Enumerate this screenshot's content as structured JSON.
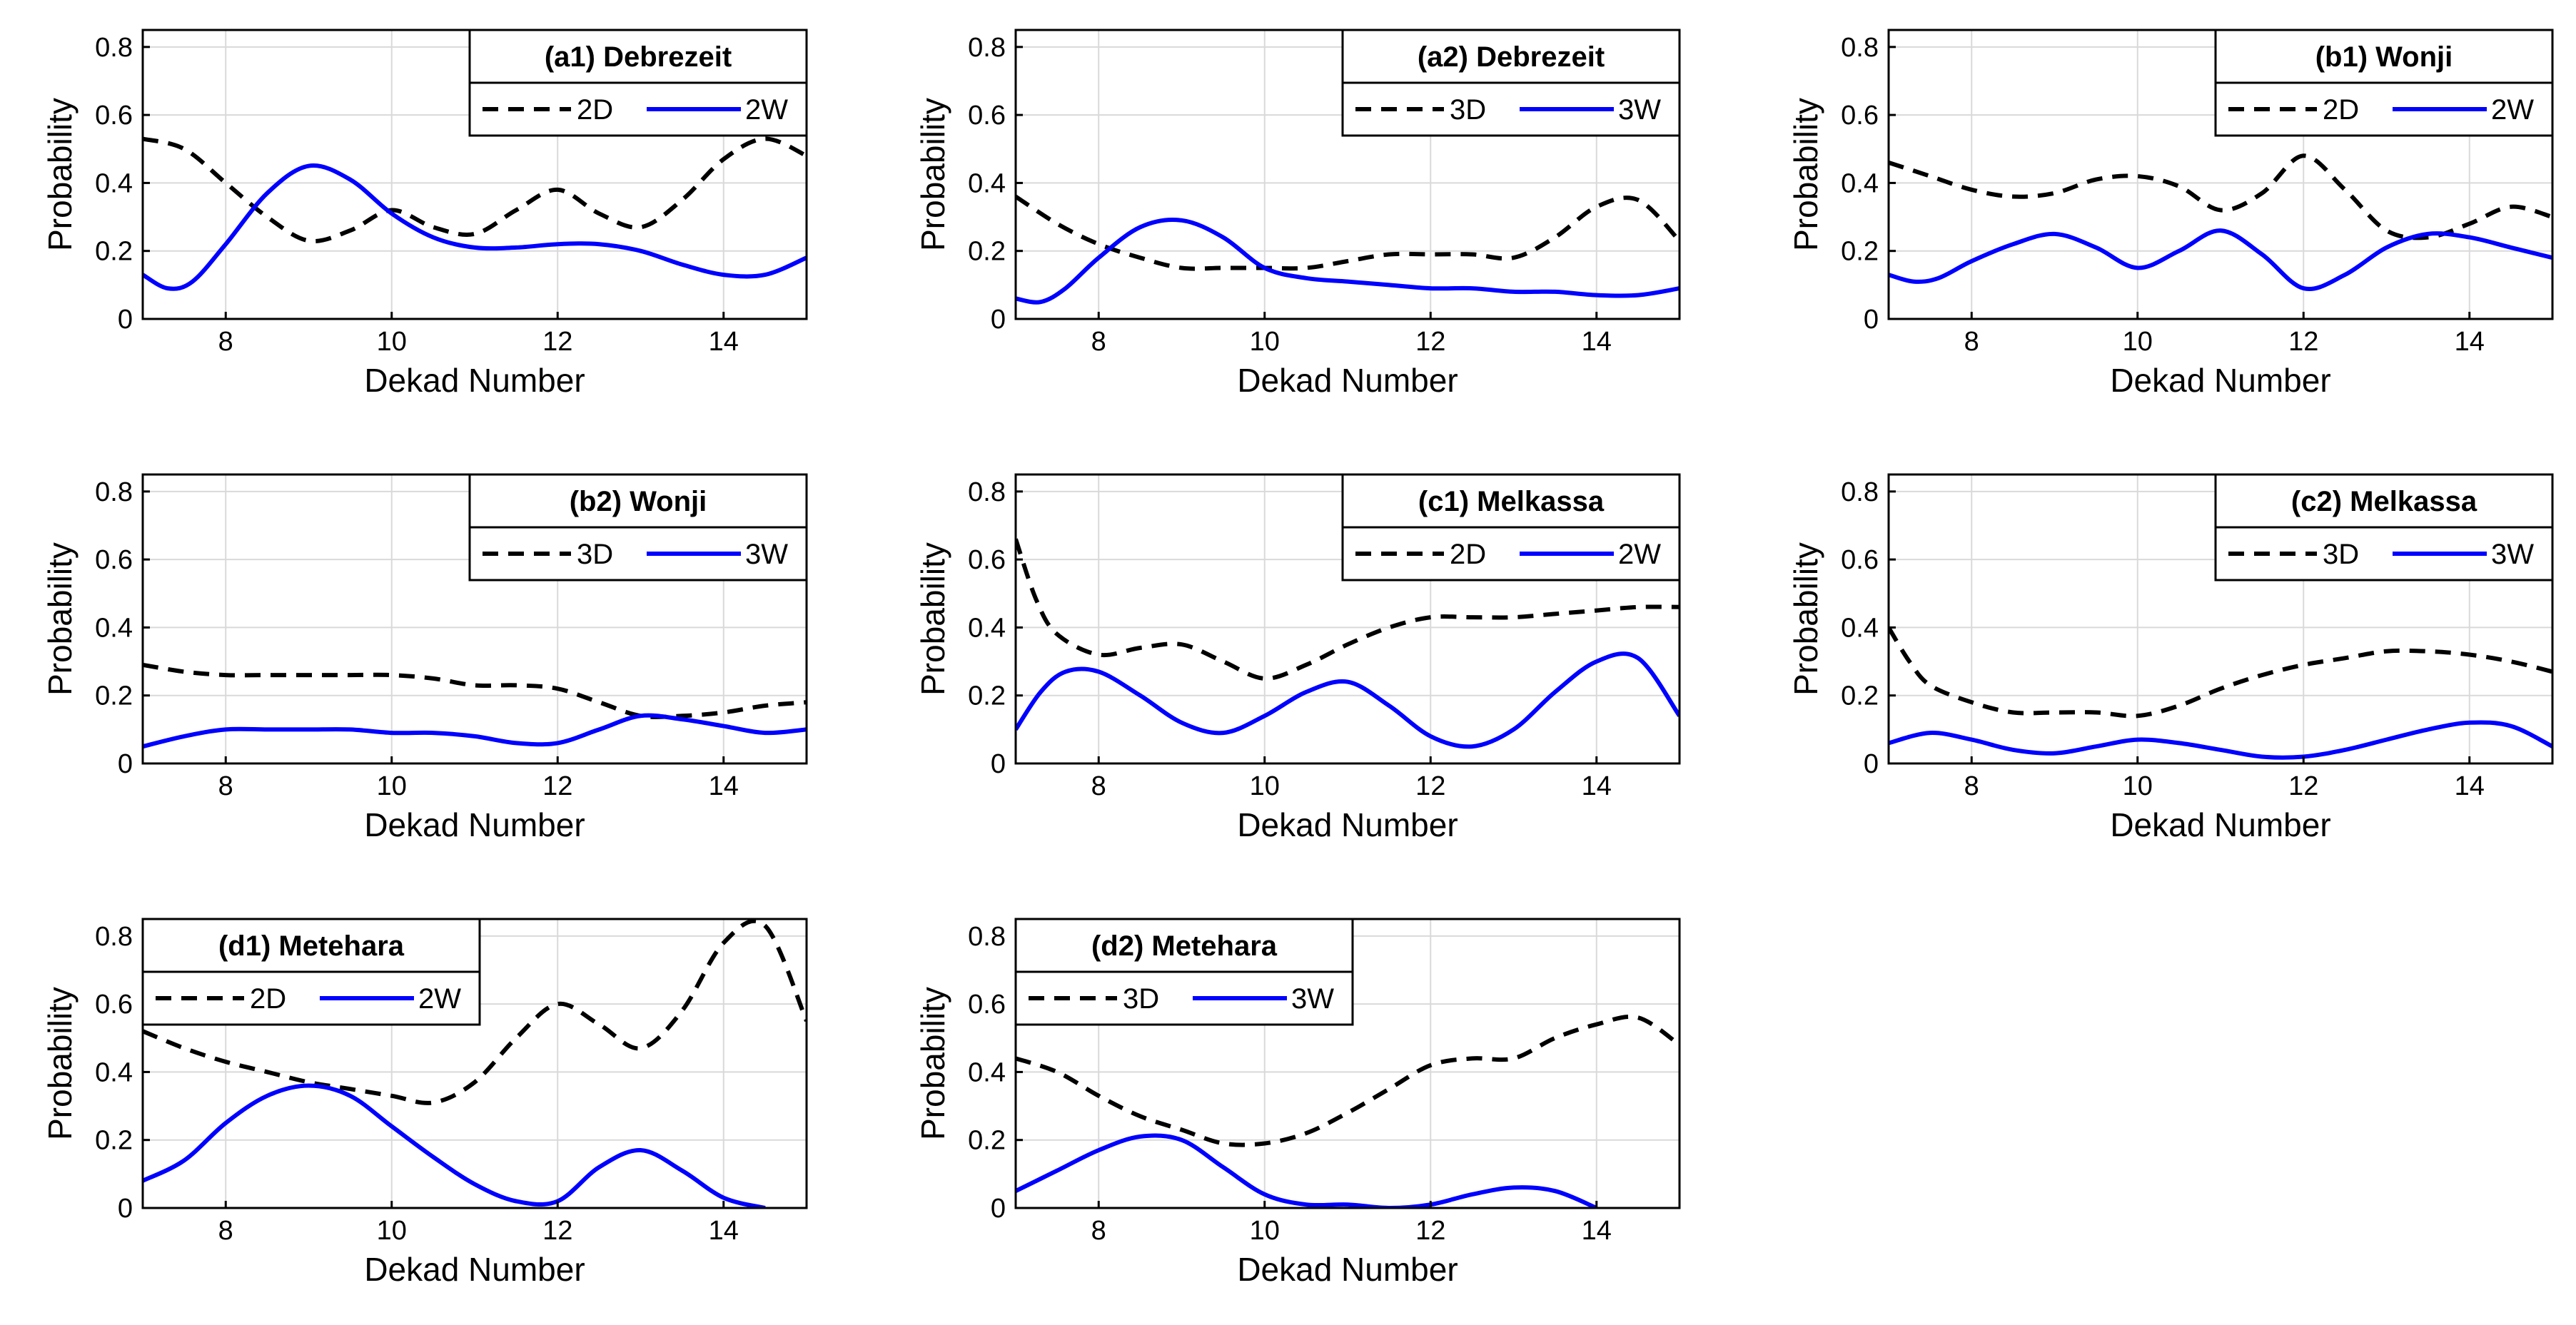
{
  "chart_data": [
    {
      "type": "line",
      "title": "(a1) Debrezeit",
      "xlabel": "Dekad Number",
      "ylabel": "Probability",
      "xlim": [
        7,
        15
      ],
      "ylim": [
        0,
        0.85
      ],
      "xticks": [
        8,
        10,
        12,
        14
      ],
      "yticks": [
        0,
        0.2,
        0.4,
        0.6,
        0.8
      ],
      "grid": true,
      "legend_position": "top-right",
      "series": [
        {
          "name": "2D",
          "style": "dashed",
          "color": "#000000",
          "x": [
            7,
            7.5,
            8,
            8.5,
            9,
            9.5,
            10,
            10.5,
            11,
            11.5,
            12,
            12.5,
            13,
            13.5,
            14,
            14.5,
            15
          ],
          "y": [
            0.53,
            0.5,
            0.4,
            0.3,
            0.23,
            0.26,
            0.32,
            0.27,
            0.25,
            0.32,
            0.38,
            0.31,
            0.27,
            0.35,
            0.47,
            0.53,
            0.48
          ]
        },
        {
          "name": "2W",
          "style": "solid",
          "color": "#0000ff",
          "x": [
            7,
            7.3,
            7.6,
            8,
            8.5,
            9,
            9.5,
            10,
            10.5,
            11,
            11.5,
            12,
            12.5,
            13,
            13.5,
            14,
            14.5,
            15
          ],
          "y": [
            0.13,
            0.09,
            0.11,
            0.22,
            0.37,
            0.45,
            0.41,
            0.31,
            0.24,
            0.21,
            0.21,
            0.22,
            0.22,
            0.2,
            0.16,
            0.13,
            0.13,
            0.18
          ]
        }
      ]
    },
    {
      "type": "line",
      "title": "(a2) Debrezeit",
      "xlabel": "Dekad Number",
      "ylabel": "Probability",
      "xlim": [
        7,
        15
      ],
      "ylim": [
        0,
        0.85
      ],
      "xticks": [
        8,
        10,
        12,
        14
      ],
      "yticks": [
        0,
        0.2,
        0.4,
        0.6,
        0.8
      ],
      "grid": true,
      "legend_position": "top-right",
      "series": [
        {
          "name": "3D",
          "style": "dashed",
          "color": "#000000",
          "x": [
            7,
            7.5,
            8,
            8.5,
            9,
            9.5,
            10,
            10.5,
            11,
            11.5,
            12,
            12.5,
            13,
            13.5,
            14,
            14.5,
            15
          ],
          "y": [
            0.36,
            0.28,
            0.22,
            0.18,
            0.15,
            0.15,
            0.15,
            0.15,
            0.17,
            0.19,
            0.19,
            0.19,
            0.18,
            0.24,
            0.33,
            0.35,
            0.23
          ]
        },
        {
          "name": "3W",
          "style": "solid",
          "color": "#0000ff",
          "x": [
            7,
            7.3,
            7.6,
            8,
            8.5,
            9,
            9.5,
            10,
            10.5,
            11,
            11.5,
            12,
            12.5,
            13,
            13.5,
            14,
            14.5,
            15
          ],
          "y": [
            0.06,
            0.05,
            0.09,
            0.18,
            0.27,
            0.29,
            0.24,
            0.15,
            0.12,
            0.11,
            0.1,
            0.09,
            0.09,
            0.08,
            0.08,
            0.07,
            0.07,
            0.09
          ]
        }
      ]
    },
    {
      "type": "line",
      "title": "(b1) Wonji",
      "xlabel": "Dekad Number",
      "ylabel": "Probability",
      "xlim": [
        7,
        15
      ],
      "ylim": [
        0,
        0.85
      ],
      "xticks": [
        8,
        10,
        12,
        14
      ],
      "yticks": [
        0,
        0.2,
        0.4,
        0.6,
        0.8
      ],
      "grid": true,
      "legend_position": "top-right",
      "series": [
        {
          "name": "2D",
          "style": "dashed",
          "color": "#000000",
          "x": [
            7,
            7.5,
            8,
            8.5,
            9,
            9.5,
            10,
            10.5,
            11,
            11.5,
            12,
            12.5,
            13,
            13.5,
            14,
            14.5,
            15
          ],
          "y": [
            0.46,
            0.42,
            0.38,
            0.36,
            0.37,
            0.41,
            0.42,
            0.39,
            0.32,
            0.37,
            0.48,
            0.38,
            0.26,
            0.24,
            0.28,
            0.33,
            0.3
          ]
        },
        {
          "name": "2W",
          "style": "solid",
          "color": "#0000ff",
          "x": [
            7,
            7.3,
            7.6,
            8,
            8.5,
            9,
            9.5,
            10,
            10.5,
            11,
            11.5,
            12,
            12.5,
            13,
            13.5,
            14,
            14.5,
            15
          ],
          "y": [
            0.13,
            0.11,
            0.12,
            0.17,
            0.22,
            0.25,
            0.21,
            0.15,
            0.2,
            0.26,
            0.19,
            0.09,
            0.13,
            0.21,
            0.25,
            0.24,
            0.21,
            0.18
          ]
        }
      ]
    },
    {
      "type": "line",
      "title": "(b2) Wonji",
      "xlabel": "Dekad Number",
      "ylabel": "Probability",
      "xlim": [
        7,
        15
      ],
      "ylim": [
        0,
        0.85
      ],
      "xticks": [
        8,
        10,
        12,
        14
      ],
      "yticks": [
        0,
        0.2,
        0.4,
        0.6,
        0.8
      ],
      "grid": true,
      "legend_position": "top-right",
      "series": [
        {
          "name": "3D",
          "style": "dashed",
          "color": "#000000",
          "x": [
            7,
            7.5,
            8,
            8.5,
            9,
            9.5,
            10,
            10.5,
            11,
            11.5,
            12,
            12.5,
            13,
            13.5,
            14,
            14.5,
            15
          ],
          "y": [
            0.29,
            0.27,
            0.26,
            0.26,
            0.26,
            0.26,
            0.26,
            0.25,
            0.23,
            0.23,
            0.22,
            0.18,
            0.14,
            0.14,
            0.15,
            0.17,
            0.18
          ]
        },
        {
          "name": "3W",
          "style": "solid",
          "color": "#0000ff",
          "x": [
            7,
            7.5,
            8,
            8.5,
            9,
            9.5,
            10,
            10.5,
            11,
            11.5,
            12,
            12.5,
            13,
            13.5,
            14,
            14.5,
            15
          ],
          "y": [
            0.05,
            0.08,
            0.1,
            0.1,
            0.1,
            0.1,
            0.09,
            0.09,
            0.08,
            0.06,
            0.06,
            0.1,
            0.14,
            0.13,
            0.11,
            0.09,
            0.1
          ]
        }
      ]
    },
    {
      "type": "line",
      "title": "(c1) Melkassa",
      "xlabel": "Dekad Number",
      "ylabel": "Probability",
      "xlim": [
        7,
        15
      ],
      "ylim": [
        0,
        0.85
      ],
      "xticks": [
        8,
        10,
        12,
        14
      ],
      "yticks": [
        0,
        0.2,
        0.4,
        0.6,
        0.8
      ],
      "grid": true,
      "legend_position": "top-right",
      "series": [
        {
          "name": "2D",
          "style": "dashed",
          "color": "#000000",
          "x": [
            7,
            7.25,
            7.5,
            8,
            8.5,
            9,
            9.5,
            10,
            10.5,
            11,
            11.5,
            12,
            12.5,
            13,
            13.5,
            14,
            14.5,
            15
          ],
          "y": [
            0.66,
            0.48,
            0.38,
            0.32,
            0.34,
            0.35,
            0.3,
            0.25,
            0.29,
            0.35,
            0.4,
            0.43,
            0.43,
            0.43,
            0.44,
            0.45,
            0.46,
            0.46
          ]
        },
        {
          "name": "2W",
          "style": "solid",
          "color": "#0000ff",
          "x": [
            7,
            7.3,
            7.6,
            8,
            8.5,
            9,
            9.5,
            10,
            10.5,
            11,
            11.5,
            12,
            12.5,
            13,
            13.5,
            14,
            14.5,
            15
          ],
          "y": [
            0.1,
            0.21,
            0.27,
            0.27,
            0.2,
            0.12,
            0.09,
            0.14,
            0.21,
            0.24,
            0.17,
            0.08,
            0.05,
            0.1,
            0.21,
            0.3,
            0.31,
            0.14
          ]
        }
      ]
    },
    {
      "type": "line",
      "title": "(c2) Melkassa",
      "xlabel": "Dekad Number",
      "ylabel": "Probability",
      "xlim": [
        7,
        15
      ],
      "ylim": [
        0,
        0.85
      ],
      "xticks": [
        8,
        10,
        12,
        14
      ],
      "yticks": [
        0,
        0.2,
        0.4,
        0.6,
        0.8
      ],
      "grid": true,
      "legend_position": "top-right",
      "series": [
        {
          "name": "3D",
          "style": "dashed",
          "color": "#000000",
          "x": [
            7,
            7.25,
            7.5,
            8,
            8.5,
            9,
            9.5,
            10,
            10.5,
            11,
            11.5,
            12,
            12.5,
            13,
            13.5,
            14,
            14.5,
            15
          ],
          "y": [
            0.4,
            0.3,
            0.23,
            0.18,
            0.15,
            0.15,
            0.15,
            0.14,
            0.17,
            0.22,
            0.26,
            0.29,
            0.31,
            0.33,
            0.33,
            0.32,
            0.3,
            0.27
          ]
        },
        {
          "name": "3W",
          "style": "solid",
          "color": "#0000ff",
          "x": [
            7,
            7.5,
            8,
            8.5,
            9,
            9.5,
            10,
            10.5,
            11,
            11.5,
            12,
            12.5,
            13,
            13.5,
            14,
            14.5,
            15
          ],
          "y": [
            0.06,
            0.09,
            0.07,
            0.04,
            0.03,
            0.05,
            0.07,
            0.06,
            0.04,
            0.02,
            0.02,
            0.04,
            0.07,
            0.1,
            0.12,
            0.11,
            0.05
          ]
        }
      ]
    },
    {
      "type": "line",
      "title": "(d1) Metehara",
      "xlabel": "Dekad Number",
      "ylabel": "Probability",
      "xlim": [
        7,
        15
      ],
      "ylim": [
        0,
        0.85
      ],
      "xticks": [
        8,
        10,
        12,
        14
      ],
      "yticks": [
        0,
        0.2,
        0.4,
        0.6,
        0.8
      ],
      "grid": true,
      "legend_position": "top-left",
      "series": [
        {
          "name": "2D",
          "style": "dashed",
          "color": "#000000",
          "x": [
            7,
            7.5,
            8,
            8.5,
            9,
            9.5,
            10,
            10.5,
            11,
            11.5,
            12,
            12.5,
            13,
            13.5,
            14,
            14.5,
            15
          ],
          "y": [
            0.52,
            0.47,
            0.43,
            0.4,
            0.37,
            0.35,
            0.33,
            0.31,
            0.37,
            0.5,
            0.6,
            0.54,
            0.47,
            0.58,
            0.78,
            0.83,
            0.55
          ]
        },
        {
          "name": "2W",
          "style": "solid",
          "color": "#0000ff",
          "x": [
            7,
            7.5,
            8,
            8.5,
            9,
            9.5,
            10,
            10.5,
            11,
            11.5,
            12,
            12.5,
            13,
            13.5,
            14,
            14.5
          ],
          "y": [
            0.08,
            0.14,
            0.25,
            0.33,
            0.36,
            0.33,
            0.24,
            0.15,
            0.07,
            0.02,
            0.02,
            0.12,
            0.17,
            0.11,
            0.03,
            0.0
          ]
        }
      ]
    },
    {
      "type": "line",
      "title": "(d2) Metehara",
      "xlabel": "Dekad Number",
      "ylabel": "Probability",
      "xlim": [
        7,
        15
      ],
      "ylim": [
        0,
        0.85
      ],
      "xticks": [
        8,
        10,
        12,
        14
      ],
      "yticks": [
        0,
        0.2,
        0.4,
        0.6,
        0.8
      ],
      "grid": true,
      "legend_position": "top-left",
      "series": [
        {
          "name": "3D",
          "style": "dashed",
          "color": "#000000",
          "x": [
            7,
            7.5,
            8,
            8.5,
            9,
            9.5,
            10,
            10.5,
            11,
            11.5,
            12,
            12.5,
            13,
            13.5,
            14,
            14.5,
            15
          ],
          "y": [
            0.44,
            0.4,
            0.33,
            0.27,
            0.23,
            0.19,
            0.19,
            0.22,
            0.28,
            0.35,
            0.42,
            0.44,
            0.44,
            0.5,
            0.54,
            0.56,
            0.48
          ]
        },
        {
          "name": "3W",
          "style": "solid",
          "color": "#0000ff",
          "x": [
            7,
            7.5,
            8,
            8.5,
            9,
            9.5,
            10,
            10.5,
            11,
            11.5,
            12,
            12.5,
            13,
            13.5,
            14
          ],
          "y": [
            0.05,
            0.11,
            0.17,
            0.21,
            0.2,
            0.12,
            0.04,
            0.01,
            0.01,
            0.0,
            0.01,
            0.04,
            0.06,
            0.05,
            0.0
          ]
        }
      ]
    }
  ]
}
